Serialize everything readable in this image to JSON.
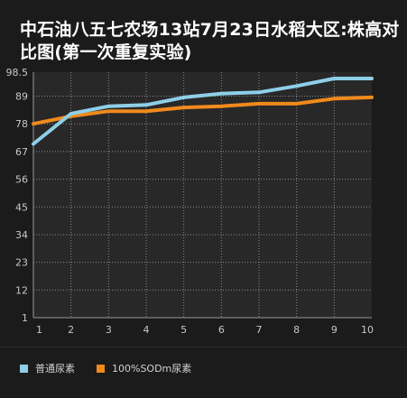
{
  "chart_data": {
    "type": "line",
    "title": "中石油八五七农场13站7月23日水稻大区:株高对比图(第一次重复实验)",
    "x": [
      1,
      2,
      3,
      4,
      5,
      6,
      7,
      8,
      9,
      10
    ],
    "yticks": [
      "98.5",
      "89",
      "78",
      "67",
      "56",
      "45",
      "34",
      "23",
      "12",
      "1"
    ],
    "ylim": [
      1,
      98.5
    ],
    "grid": true,
    "legend": "bottom-left",
    "series": [
      {
        "name": "普通尿素",
        "color": "#8ecfe8",
        "values": [
          70,
          82,
          85,
          85.5,
          88.5,
          90,
          90.5,
          93,
          96,
          96
        ]
      },
      {
        "name": "100%SODm尿素",
        "color": "#f08a1c",
        "values": [
          78,
          81,
          83,
          83,
          84.5,
          85,
          86,
          86,
          88,
          88.5
        ]
      }
    ]
  }
}
